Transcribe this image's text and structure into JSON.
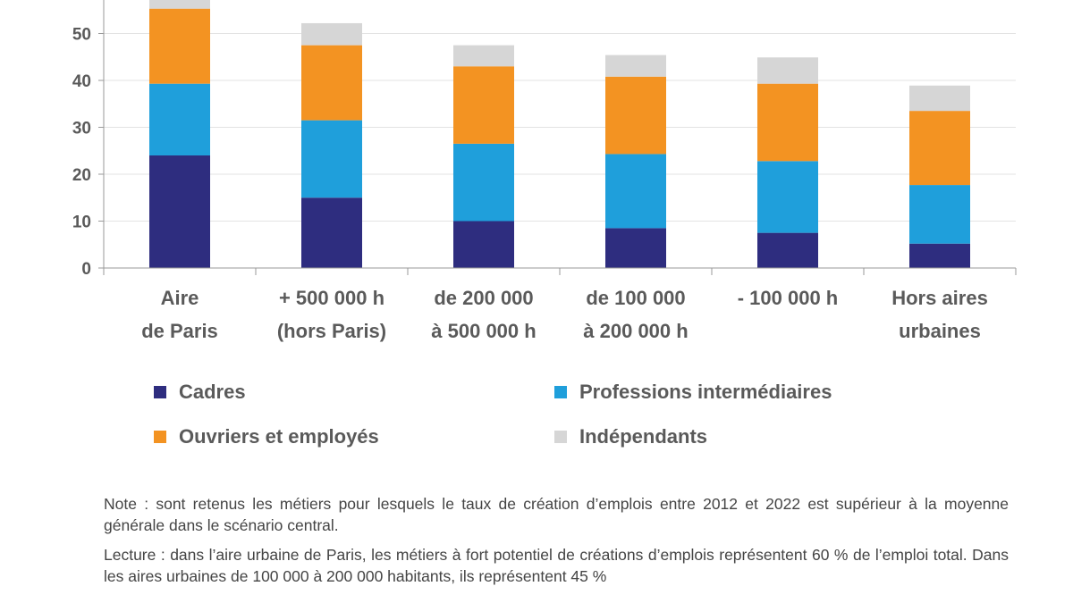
{
  "chart_data": {
    "type": "bar",
    "stacked": true,
    "categories": [
      [
        "Aire",
        "de Paris"
      ],
      [
        "+ 500 000 h",
        "(hors Paris)"
      ],
      [
        "de 200 000",
        "à 500 000 h"
      ],
      [
        "de 100 000",
        "à 200 000 h"
      ],
      [
        "- 100 000 h"
      ],
      [
        "Hors aires",
        "urbaines"
      ]
    ],
    "series": [
      {
        "name": "Cadres",
        "color": "#2e2d7f",
        "values": [
          24,
          15,
          10,
          8.5,
          7.5,
          5.2
        ]
      },
      {
        "name": "Professions intermédiaires",
        "color": "#1f9fdb",
        "values": [
          15.3,
          16.5,
          16.5,
          15.8,
          15.3,
          12.5
        ]
      },
      {
        "name": "Ouvriers et employés",
        "color": "#f39322",
        "values": [
          16,
          16,
          16.5,
          16.5,
          16.5,
          15.8
        ]
      },
      {
        "name": "Indépendants",
        "color": "#d6d6d6",
        "values": [
          4.7,
          4.7,
          4.5,
          4.6,
          5.6,
          5.4
        ]
      }
    ],
    "yticks": [
      0,
      10,
      20,
      30,
      40,
      50
    ],
    "ylim": [
      0,
      60
    ],
    "grid": true,
    "legend_position": "bottom"
  },
  "legend": {
    "cadres": "Cadres",
    "professions": "Professions intermédiaires",
    "ouvriers": "Ouvriers et employés",
    "independants": "Indépendants"
  },
  "notes": {
    "note": "Note : sont retenus les métiers pour lesquels le taux de création d’emplois entre 2012 et 2022 est supérieur à la moyenne générale dans le scénario central.",
    "lecture": "Lecture : dans l’aire urbaine de Paris, les métiers à fort potentiel de créations d’emplois représentent 60 % de l’emploi total. Dans les aires urbaines de 100 000 à 200 000 habitants, ils représentent 45 %"
  }
}
